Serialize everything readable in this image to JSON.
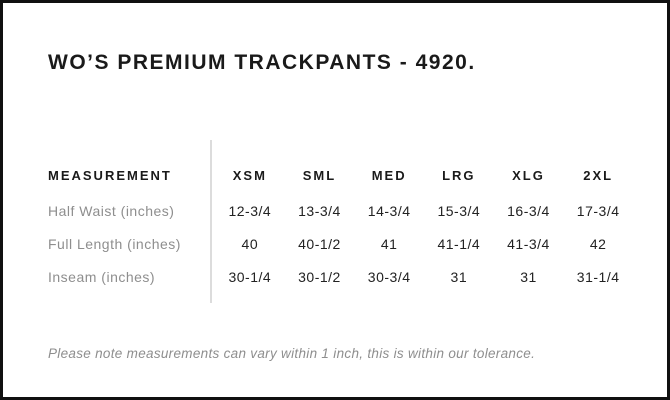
{
  "card": {
    "title": "WO’S PREMIUM TRACKPANTS - 4920."
  },
  "table": {
    "measurement_header": "MEASUREMENT",
    "size_headers": [
      "XSM",
      "SML",
      "MED",
      "LRG",
      "XLG",
      "2XL"
    ],
    "rows": [
      {
        "label": "Half Waist (inches)",
        "values": [
          "12-3/4",
          "13-3/4",
          "14-3/4",
          "15-3/4",
          "16-3/4",
          "17-3/4"
        ]
      },
      {
        "label": "Full Length (inches)",
        "values": [
          "40",
          "40-1/2",
          "41",
          "41-1/4",
          "41-3/4",
          "42"
        ]
      },
      {
        "label": "Inseam (inches)",
        "values": [
          "30-1/4",
          "30-1/2",
          "30-3/4",
          "31",
          "31",
          "31-1/4"
        ]
      }
    ]
  },
  "note": "Please note measurements can vary within 1 inch, this is within our tolerance.",
  "colors": {
    "border": "#101010",
    "heading_text": "#1a1a1a",
    "row_label_gray": "#8e8e8e",
    "value_dark": "#222222",
    "divider_gray": "#dcdcdc",
    "background": "#ffffff"
  }
}
